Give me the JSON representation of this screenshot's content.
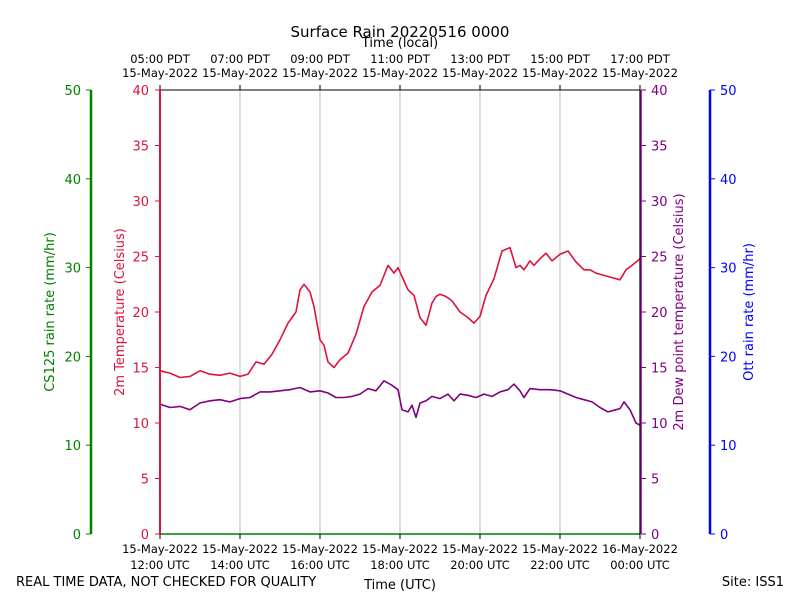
{
  "chart_data": {
    "type": "line",
    "title": "Surface Rain 20220516 0000",
    "top_xlabel": "Time (local)",
    "xlabel": "Time (UTC)",
    "footer_left": "REAL TIME DATA, NOT CHECKED FOR QUALITY",
    "footer_right": "Site: ISS1",
    "bottom_ticks": [
      {
        "hour": 12,
        "line1": "15-May-2022",
        "line2": "12:00 UTC"
      },
      {
        "hour": 14,
        "line1": "15-May-2022",
        "line2": "14:00 UTC"
      },
      {
        "hour": 16,
        "line1": "15-May-2022",
        "line2": "16:00 UTC"
      },
      {
        "hour": 18,
        "line1": "15-May-2022",
        "line2": "18:00 UTC"
      },
      {
        "hour": 20,
        "line1": "15-May-2022",
        "line2": "20:00 UTC"
      },
      {
        "hour": 22,
        "line1": "15-May-2022",
        "line2": "22:00 UTC"
      },
      {
        "hour": 24,
        "line1": "16-May-2022",
        "line2": "00:00 UTC"
      }
    ],
    "top_ticks": [
      {
        "hour": 12,
        "line1": "05:00 PDT",
        "line2": "15-May-2022"
      },
      {
        "hour": 14,
        "line1": "07:00 PDT",
        "line2": "15-May-2022"
      },
      {
        "hour": 16,
        "line1": "09:00 PDT",
        "line2": "15-May-2022"
      },
      {
        "hour": 18,
        "line1": "11:00 PDT",
        "line2": "15-May-2022"
      },
      {
        "hour": 20,
        "line1": "13:00 PDT",
        "line2": "15-May-2022"
      },
      {
        "hour": 22,
        "line1": "15:00 PDT",
        "line2": "15-May-2022"
      },
      {
        "hour": 24,
        "line1": "17:00 PDT",
        "line2": "15-May-2022"
      }
    ],
    "xlim": [
      12,
      24
    ],
    "axes": {
      "cs125": {
        "label": "CS125 rain rate (mm/hr)",
        "ylim": [
          0,
          50
        ],
        "ticks": [
          0,
          10,
          20,
          30,
          40,
          50
        ],
        "color": "#008000"
      },
      "temp": {
        "label": "2m Temperature (Celsius)",
        "ylim": [
          0,
          40
        ],
        "ticks": [
          0,
          5,
          10,
          15,
          20,
          25,
          30,
          35,
          40
        ],
        "color": "#dc143c"
      },
      "dew": {
        "label": "2m Dew point temperature (Celsius)",
        "ylim": [
          0,
          40
        ],
        "ticks": [
          0,
          5,
          10,
          15,
          20,
          25,
          30,
          35,
          40
        ],
        "color": "#800080"
      },
      "ott": {
        "label": "Ott rain rate (mm/hr)",
        "ylim": [
          0,
          50
        ],
        "ticks": [
          0,
          10,
          20,
          30,
          40,
          50
        ],
        "color": "#0000ff"
      }
    },
    "series": [
      {
        "name": "2m Temperature",
        "axis": "temp",
        "color": "#dc143c",
        "x": [
          12.0,
          12.25,
          12.5,
          12.75,
          13.0,
          13.25,
          13.5,
          13.75,
          14.0,
          14.2,
          14.4,
          14.6,
          14.8,
          15.0,
          15.2,
          15.4,
          15.5,
          15.6,
          15.75,
          15.85,
          16.0,
          16.1,
          16.2,
          16.35,
          16.5,
          16.7,
          16.9,
          17.1,
          17.3,
          17.5,
          17.7,
          17.85,
          17.95,
          18.05,
          18.2,
          18.35,
          18.5,
          18.65,
          18.8,
          18.9,
          19.0,
          19.15,
          19.3,
          19.5,
          19.7,
          19.85,
          20.0,
          20.15,
          20.35,
          20.55,
          20.75,
          20.9,
          21.0,
          21.1,
          21.25,
          21.35,
          21.5,
          21.65,
          21.8,
          22.0,
          22.2,
          22.4,
          22.6,
          22.75,
          22.9,
          23.1,
          23.3,
          23.5,
          23.65,
          23.8,
          24.0
        ],
        "values": [
          14.7,
          14.5,
          14.1,
          14.2,
          14.7,
          14.4,
          14.3,
          14.5,
          14.2,
          14.4,
          15.5,
          15.3,
          16.2,
          17.5,
          19.0,
          20.0,
          22.0,
          22.5,
          21.8,
          20.5,
          17.5,
          17.0,
          15.5,
          15.0,
          15.7,
          16.3,
          18.0,
          20.5,
          21.8,
          22.4,
          24.2,
          23.5,
          24.0,
          23.2,
          22.0,
          21.5,
          19.5,
          18.8,
          20.8,
          21.4,
          21.6,
          21.4,
          21.0,
          20.0,
          19.5,
          19.0,
          19.6,
          21.5,
          23.0,
          25.5,
          25.8,
          24.0,
          24.2,
          23.8,
          24.6,
          24.2,
          24.8,
          25.3,
          24.6,
          25.2,
          25.5,
          24.5,
          23.8,
          23.8,
          23.5,
          23.3,
          23.1,
          22.9,
          23.8,
          24.2,
          24.8
        ]
      },
      {
        "name": "2m Dew point temperature",
        "axis": "dew",
        "color": "#800080",
        "x": [
          12.0,
          12.25,
          12.5,
          12.75,
          13.0,
          13.25,
          13.5,
          13.75,
          14.0,
          14.25,
          14.5,
          14.75,
          15.0,
          15.25,
          15.5,
          15.75,
          16.0,
          16.2,
          16.4,
          16.6,
          16.8,
          17.0,
          17.2,
          17.4,
          17.6,
          17.8,
          17.95,
          18.05,
          18.2,
          18.3,
          18.4,
          18.5,
          18.65,
          18.8,
          19.0,
          19.2,
          19.35,
          19.5,
          19.7,
          19.9,
          20.1,
          20.3,
          20.5,
          20.7,
          20.85,
          21.0,
          21.1,
          21.25,
          21.5,
          21.75,
          22.0,
          22.2,
          22.4,
          22.6,
          22.8,
          23.0,
          23.2,
          23.4,
          23.5,
          23.6,
          23.75,
          23.9,
          24.0
        ],
        "values": [
          11.7,
          11.4,
          11.5,
          11.2,
          11.8,
          12.0,
          12.1,
          11.9,
          12.2,
          12.3,
          12.8,
          12.8,
          12.9,
          13.0,
          13.2,
          12.8,
          12.9,
          12.7,
          12.3,
          12.3,
          12.4,
          12.6,
          13.1,
          12.9,
          13.8,
          13.4,
          13.0,
          11.2,
          11.0,
          11.6,
          10.5,
          11.8,
          12.0,
          12.4,
          12.2,
          12.6,
          12.0,
          12.6,
          12.5,
          12.3,
          12.6,
          12.4,
          12.8,
          13.0,
          13.5,
          12.9,
          12.3,
          13.1,
          13.0,
          13.0,
          12.9,
          12.6,
          12.3,
          12.1,
          11.9,
          11.4,
          11.0,
          11.2,
          11.3,
          11.9,
          11.2,
          10.0,
          9.8
        ]
      }
    ]
  }
}
